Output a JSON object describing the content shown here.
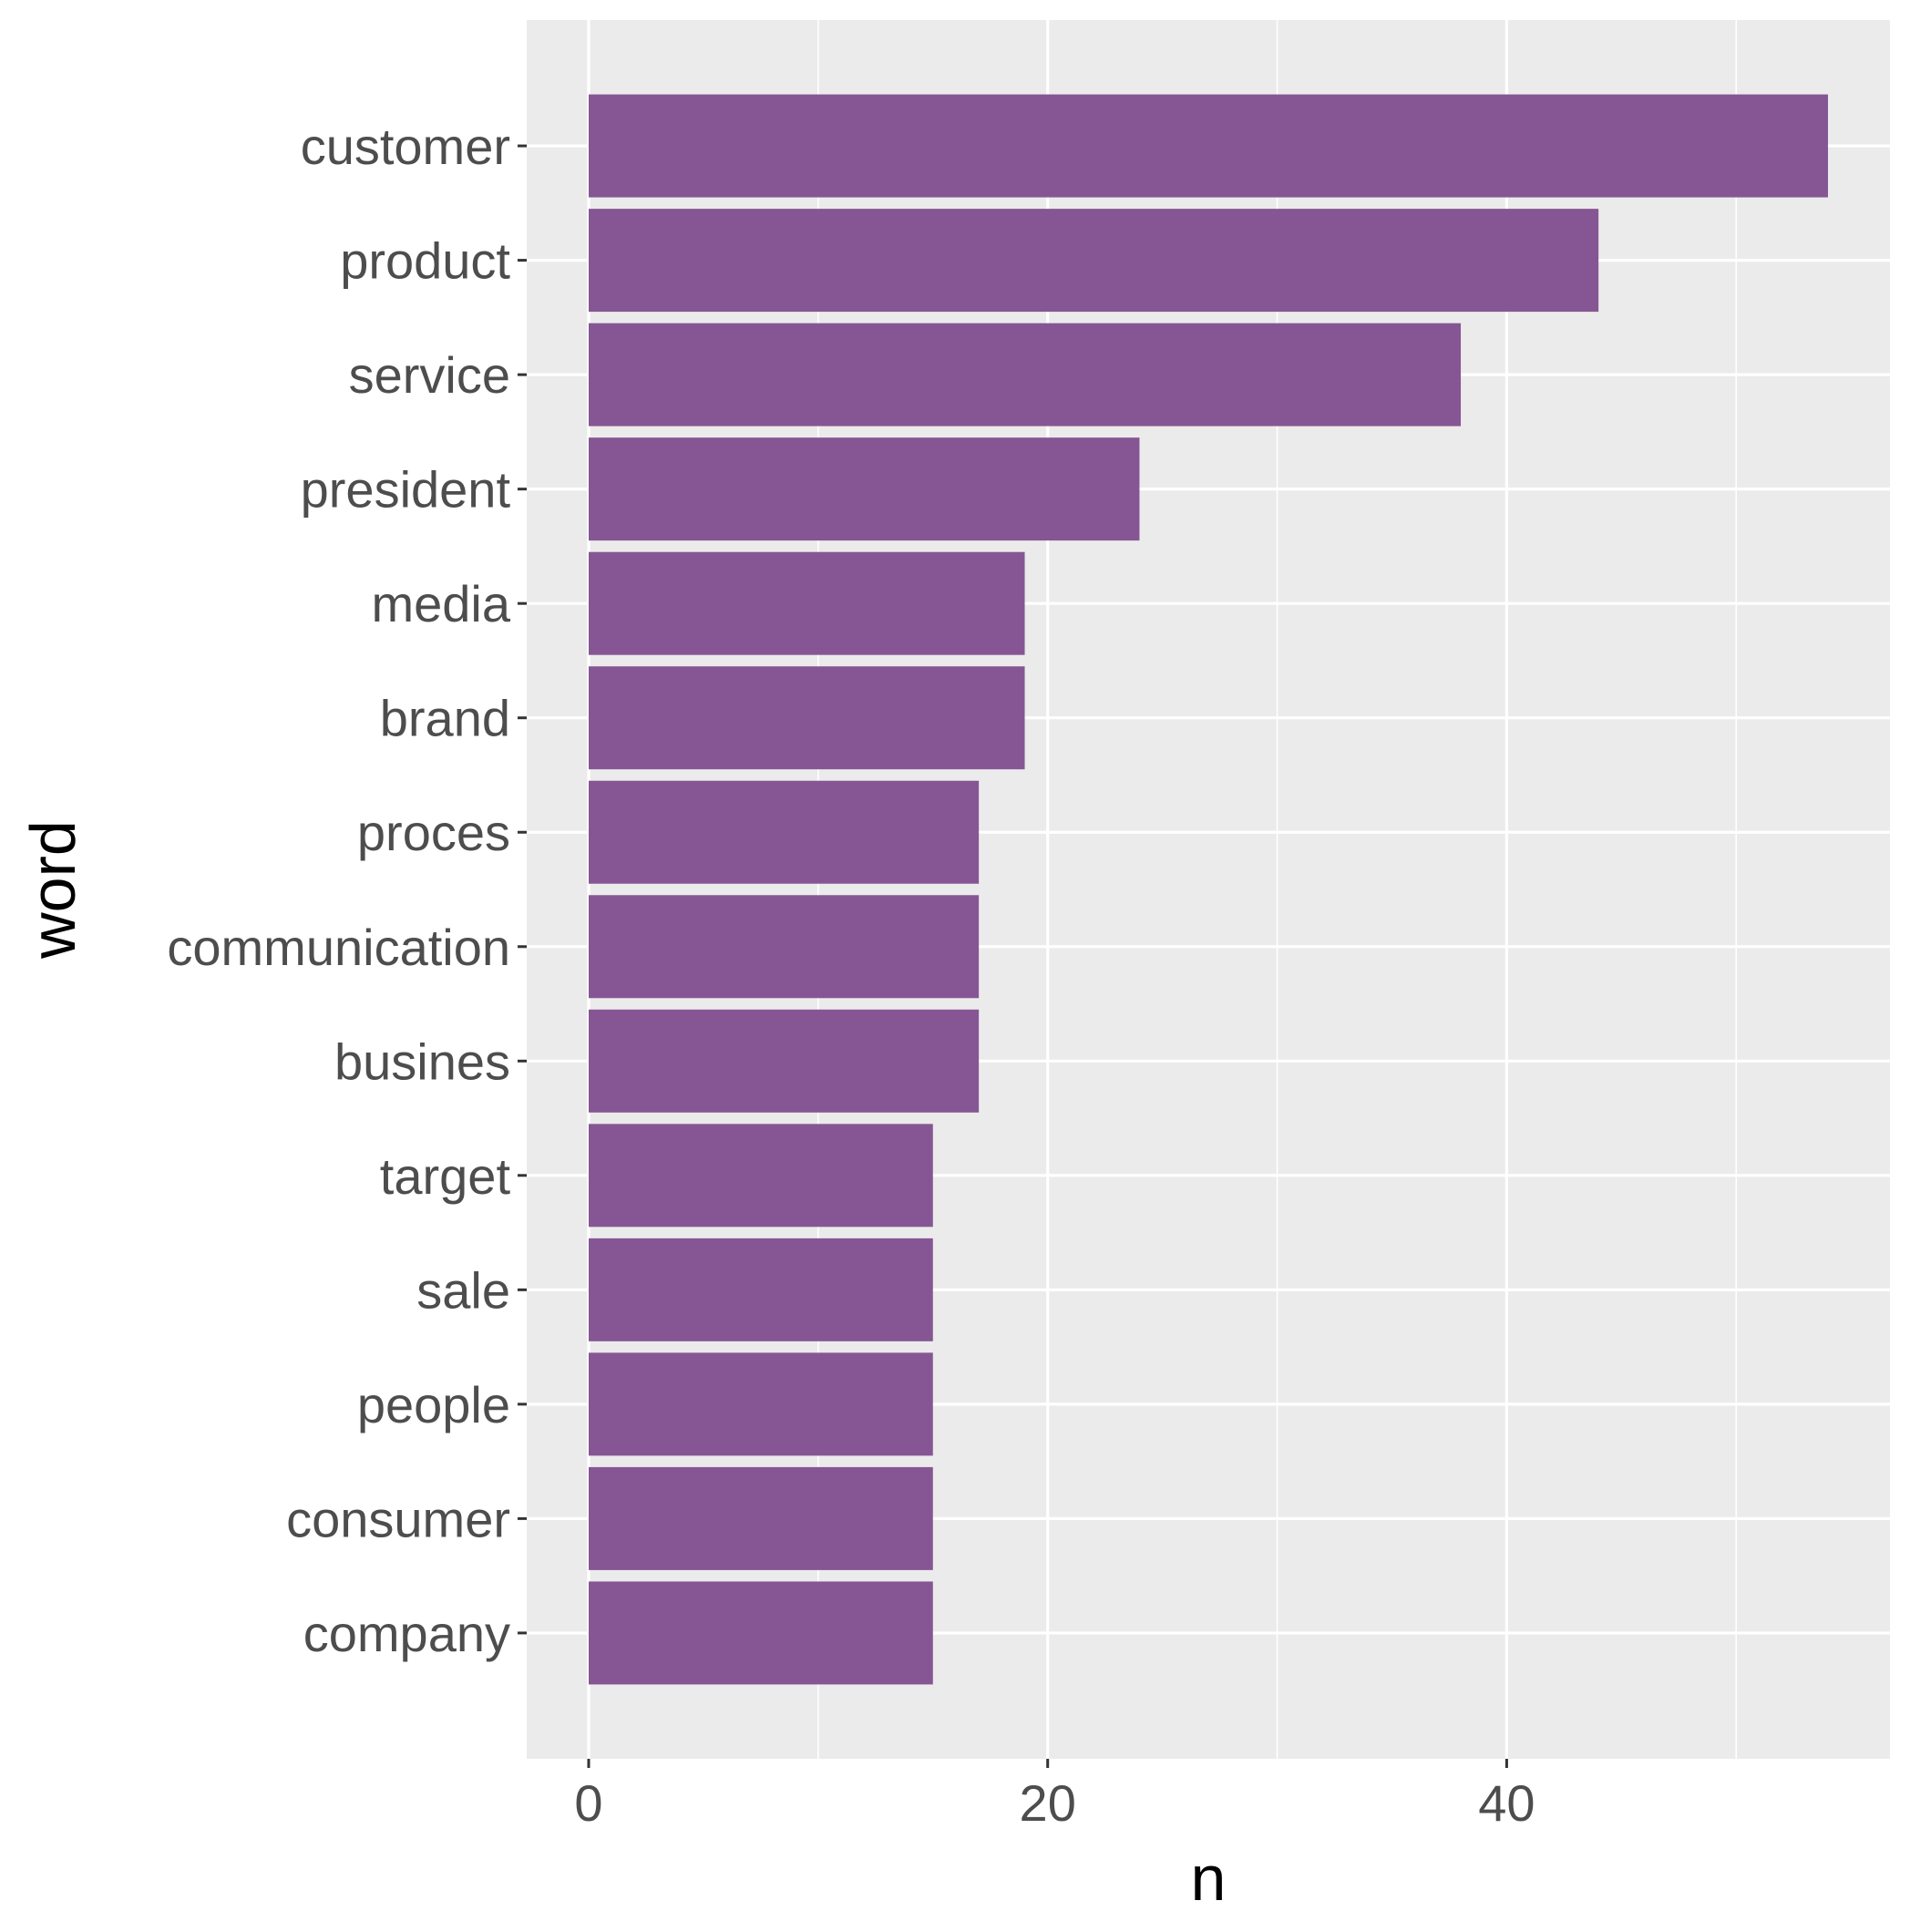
{
  "chart_data": {
    "type": "bar",
    "orientation": "horizontal",
    "categories": [
      "customer",
      "product",
      "service",
      "president",
      "media",
      "brand",
      "proces",
      "communication",
      "busines",
      "target",
      "sale",
      "people",
      "consumer",
      "company"
    ],
    "values": [
      54,
      44,
      38,
      24,
      19,
      19,
      17,
      17,
      17,
      15,
      15,
      15,
      15,
      15
    ],
    "xlabel": "n",
    "ylabel": "word",
    "xlim": [
      -2.7,
      56.7
    ],
    "x_major_ticks": [
      0,
      20,
      40
    ],
    "x_minor_ticks": [
      10,
      30,
      50
    ],
    "x_tick_labels": [
      "0",
      "20",
      "40"
    ],
    "grid": true,
    "colors": {
      "bar": "#865694",
      "panel": "#ebebeb",
      "grid": "#ffffff",
      "tick": "#333333"
    }
  }
}
